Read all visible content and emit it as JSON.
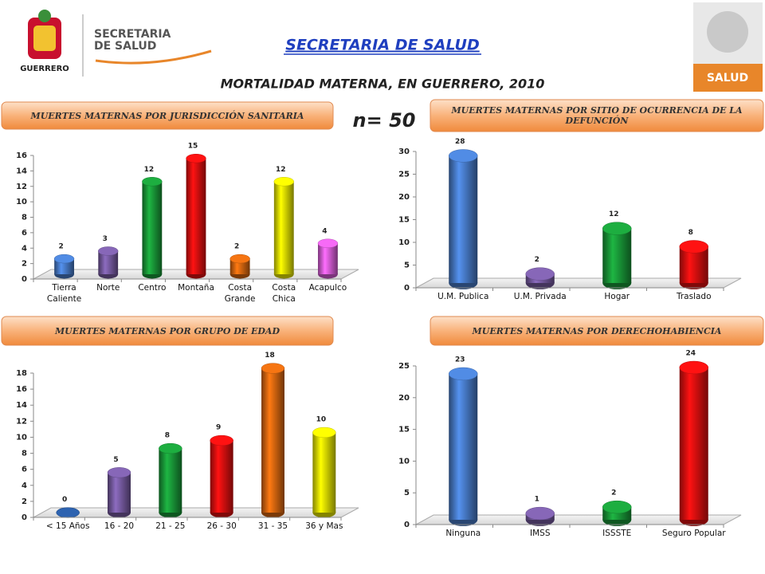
{
  "header": {
    "title": "SECRETARIA DE SALUD",
    "subtitle": "MORTALIDAD MATERNA, EN GUERRERO, 2010",
    "n": "n= 50",
    "logo_left": "SECRETARÍA DE SALUD",
    "logo_state": "GUERRERO",
    "logo_right": "SALUD"
  },
  "chart_data": [
    {
      "type": "bar",
      "title": "MUERTES MATERNAS POR JURISDICCIÓN SANITARIA",
      "categories": [
        "Tierra Caliente",
        "Norte",
        "Centro",
        "Montaña",
        "Costa Grande",
        "Costa Chica",
        "Acapulco"
      ],
      "values": [
        2,
        3,
        12,
        15,
        2,
        12,
        4
      ],
      "colors": [
        "#4a7fd0",
        "#7b5ea7",
        "#1a9e3a",
        "#e81010",
        "#e06a10",
        "#f0f000",
        "#e060e0"
      ],
      "ylim": [
        0,
        16
      ],
      "yticks": [
        0,
        2,
        4,
        6,
        8,
        10,
        12,
        14,
        16
      ]
    },
    {
      "type": "bar",
      "title": "MUERTES MATERNAS POR SITIO DE OCURRENCIA DE LA DEFUNCIÓN",
      "categories": [
        "U.M. Publica",
        "U.M. Privada",
        "Hogar",
        "Traslado"
      ],
      "values": [
        28,
        2,
        12,
        8
      ],
      "colors": [
        "#4a7fd0",
        "#7b5ea7",
        "#1a9e3a",
        "#e81010"
      ],
      "ylim": [
        0,
        30
      ],
      "yticks": [
        0,
        5,
        10,
        15,
        20,
        25,
        30
      ]
    },
    {
      "type": "bar",
      "title": "MUERTES MATERNAS POR GRUPO DE EDAD",
      "categories": [
        "< 15 Años",
        "16 - 20",
        "21 - 25",
        "26 - 30",
        "31 - 35",
        "36 y Mas"
      ],
      "values": [
        0,
        5,
        8,
        9,
        18,
        10
      ],
      "colors": [
        "#2a5aa0",
        "#7b5ea7",
        "#1a9e3a",
        "#e81010",
        "#e06a10",
        "#f0f000"
      ],
      "ylim": [
        0,
        18
      ],
      "yticks": [
        0,
        2,
        4,
        6,
        8,
        10,
        12,
        14,
        16,
        18
      ]
    },
    {
      "type": "bar",
      "title": "MUERTES MATERNAS POR DERECHOHABIENCIA",
      "categories": [
        "Ninguna",
        "IMSS",
        "ISSSTE",
        "Seguro Popular"
      ],
      "values": [
        23,
        1,
        2,
        24
      ],
      "colors": [
        "#4a7fd0",
        "#7b5ea7",
        "#1a9e3a",
        "#e81010"
      ],
      "ylim": [
        0,
        25
      ],
      "yticks": [
        0,
        5,
        10,
        15,
        20,
        25
      ]
    }
  ]
}
